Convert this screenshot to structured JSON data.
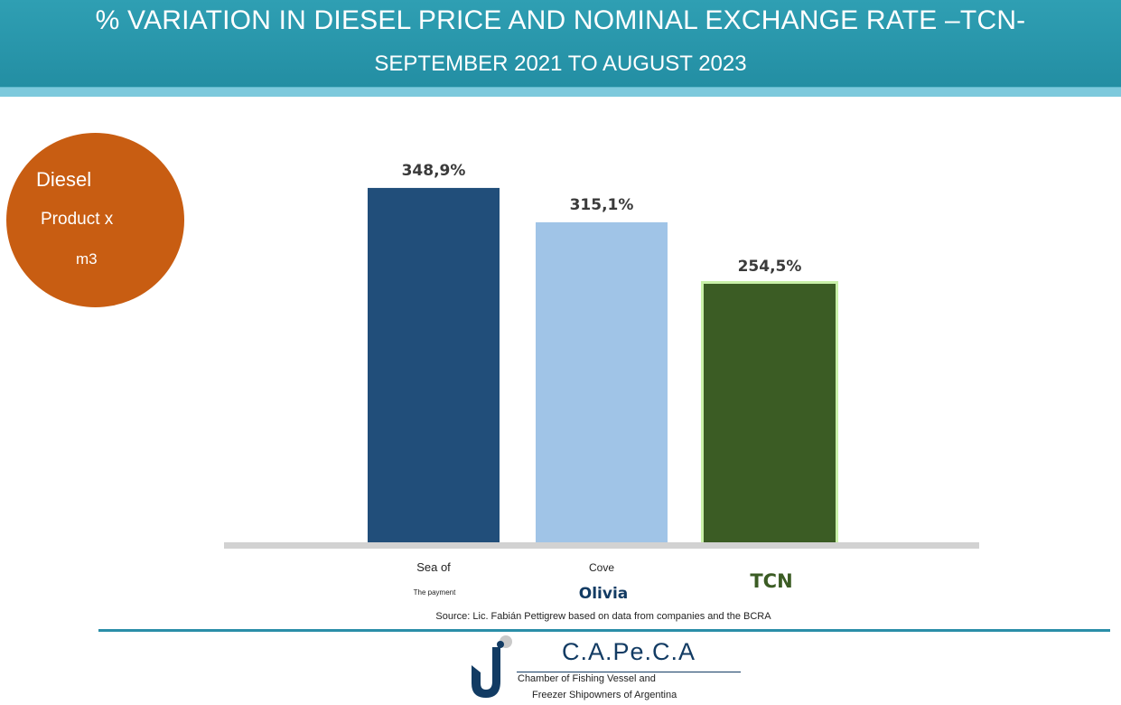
{
  "header": {
    "title": "% VARIATION IN DIESEL PRICE AND NOMINAL EXCHANGE RATE –TCN-",
    "subtitle": "SEPTEMBER 2021 TO AUGUST 2023"
  },
  "badge": {
    "line1": "Diesel",
    "line2": "Product x",
    "line3": "m3"
  },
  "chart_data": {
    "type": "bar",
    "title": "% VARIATION IN DIESEL PRICE AND NOMINAL EXCHANGE RATE –TCN-",
    "subtitle": "SEPTEMBER 2021 TO AUGUST 2023",
    "categories": [
      {
        "small": "Sea of",
        "smaller": "The payment",
        "bold": ""
      },
      {
        "small": "Cove",
        "smaller": "",
        "bold": "Olivia"
      },
      {
        "small": "",
        "smaller": "",
        "bold": "TCN"
      }
    ],
    "values": [
      348.9,
      315.1,
      254.5
    ],
    "data_labels": [
      "348,9%",
      "315,1%",
      "254,5%"
    ],
    "colors": [
      "#214e7a",
      "#a0c4e7",
      "#3b5c24"
    ],
    "highlight_color": "#c9f0a8",
    "tcn_label_color": "#3b5c24",
    "olivia_label_color": "#123b63",
    "ylim": [
      0,
      400
    ],
    "grid": false,
    "legend": "none",
    "xlabel": "",
    "ylabel": ""
  },
  "source": "Source: Lic. Fabián Pettigrew based on data from companies and the BCRA",
  "logo": {
    "name": "C.A.Pe.C.A",
    "line1": "Chamber of Fishing Vessel and",
    "line2": "Freezer Shipowners of Argentina",
    "mark": "fishing-hook-icon"
  }
}
